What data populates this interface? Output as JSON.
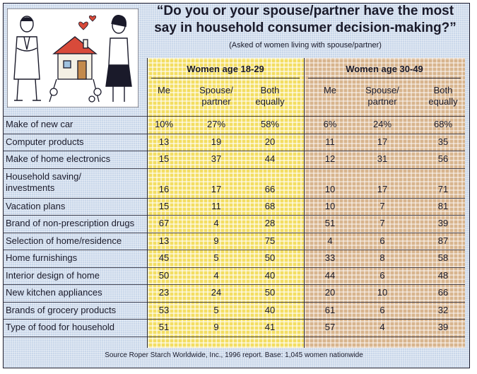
{
  "chart_data": {
    "type": "table",
    "title": "“Do you or your spouse/partner have the most say in household consumer decision-making?”",
    "subtitle": "(Asked of women living with spouse/partner)",
    "groups": [
      {
        "name": "Women age 18-29",
        "columns": [
          "Me",
          "Spouse/\npartner",
          "Both\nequally"
        ]
      },
      {
        "name": "Women age 30-49",
        "columns": [
          "Me",
          "Spouse/\npartner",
          "Both\nequally"
        ]
      }
    ],
    "rows": [
      {
        "label": "Make of new car",
        "values": [
          "10%",
          "27%",
          "58%",
          "6%",
          "24%",
          "68%"
        ]
      },
      {
        "label": "Computer products",
        "values": [
          "13",
          "19",
          "20",
          "11",
          "17",
          "35"
        ]
      },
      {
        "label": "Make of home electronics",
        "values": [
          "15",
          "37",
          "44",
          "12",
          "31",
          "56"
        ]
      },
      {
        "label": "Household saving/\ninvestments",
        "values": [
          "16",
          "17",
          "66",
          "10",
          "17",
          "71"
        ]
      },
      {
        "label": "Vacation plans",
        "values": [
          "15",
          "11",
          "68",
          "10",
          "7",
          "81"
        ]
      },
      {
        "label": "Brand of non-prescription drugs",
        "values": [
          "67",
          "4",
          "28",
          "51",
          "7",
          "39"
        ]
      },
      {
        "label": "Selection of home/residence",
        "values": [
          "13",
          "9",
          "75",
          "4",
          "6",
          "87"
        ]
      },
      {
        "label": "Home furnishings",
        "values": [
          "45",
          "5",
          "50",
          "33",
          "8",
          "58"
        ]
      },
      {
        "label": "Interior design of home",
        "values": [
          "50",
          "4",
          "40",
          "44",
          "6",
          "48"
        ]
      },
      {
        "label": "New kitchen appliances",
        "values": [
          "23",
          "24",
          "50",
          "20",
          "10",
          "66"
        ]
      },
      {
        "label": "Brands of grocery products",
        "values": [
          "53",
          "5",
          "40",
          "61",
          "6",
          "32"
        ]
      },
      {
        "label": "Type of food for household",
        "values": [
          "51",
          "9",
          "41",
          "57",
          "4",
          "39"
        ]
      }
    ],
    "source": "Source Roper Starch Worldwide, Inc., 1996 report. Base: 1,045 women nationwide"
  },
  "colors": {
    "background": "#c9d7ea",
    "group_18_29": "#f3de62",
    "group_30_49": "#d8b58e",
    "ink": "#1a1a2a"
  },
  "illustration": {
    "icons": [
      "man-icon",
      "house-icon",
      "hearts-icon",
      "woman-icon"
    ]
  }
}
